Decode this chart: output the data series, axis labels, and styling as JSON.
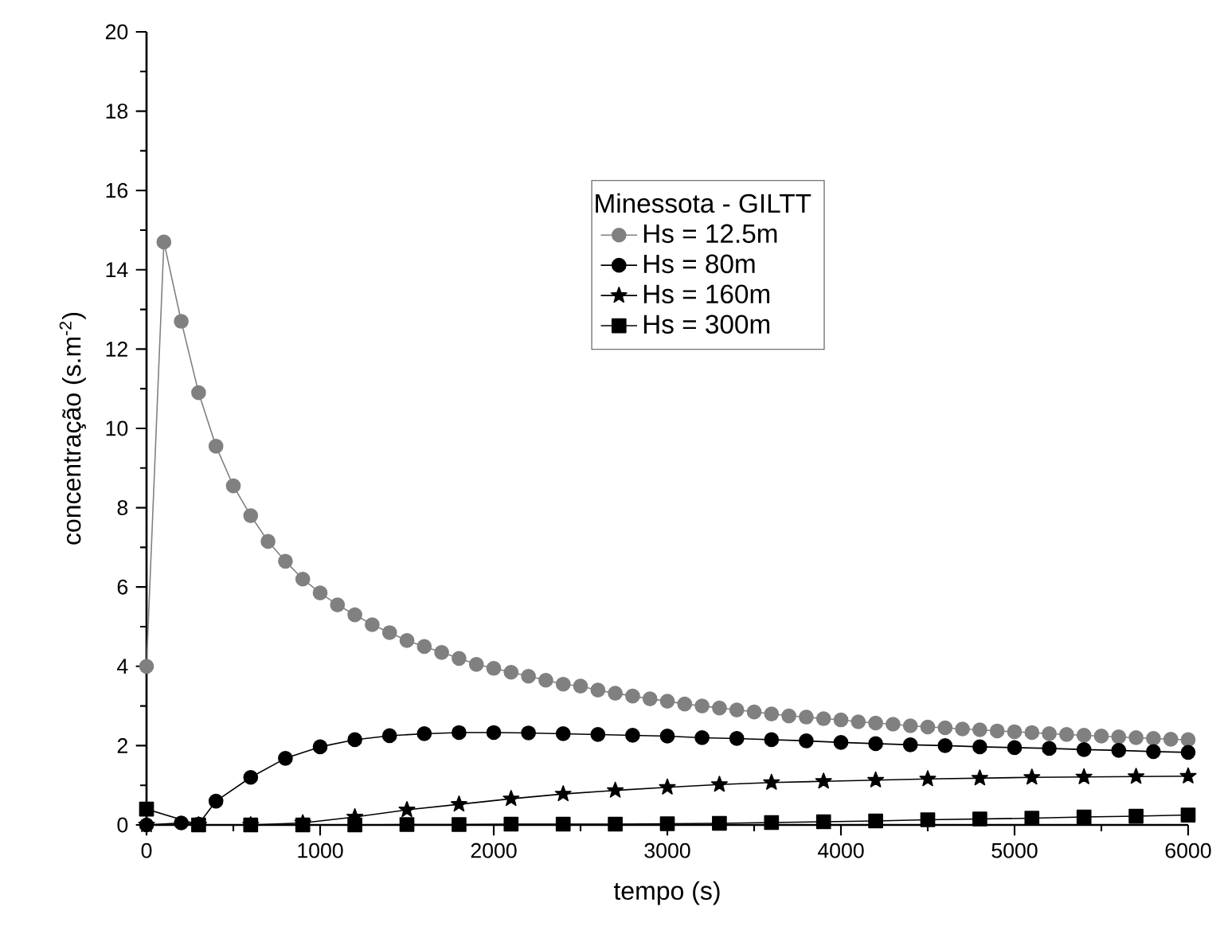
{
  "chart_data": {
    "type": "line",
    "xlabel": "tempo  (s)",
    "ylabel": "concentração  (s.m$^{-2}$)",
    "legend_title": "Minessota - GILTT",
    "xlim": [
      0,
      6000
    ],
    "ylim": [
      0,
      20
    ],
    "xticks": [
      0,
      1000,
      2000,
      3000,
      4000,
      5000,
      6000
    ],
    "yticks": [
      0,
      2,
      4,
      6,
      8,
      10,
      12,
      14,
      16,
      18,
      20
    ],
    "legend": "top right",
    "grid": false,
    "series": [
      {
        "name": "Hs = 12.5m",
        "color": "#808080",
        "marker": "circle",
        "x": [
          0,
          100,
          200,
          300,
          400,
          500,
          600,
          700,
          800,
          900,
          1000,
          1100,
          1200,
          1300,
          1400,
          1500,
          1600,
          1700,
          1800,
          1900,
          2000,
          2100,
          2200,
          2300,
          2400,
          2500,
          2600,
          2700,
          2800,
          2900,
          3000,
          3100,
          3200,
          3300,
          3400,
          3500,
          3600,
          3700,
          3800,
          3900,
          4000,
          4100,
          4200,
          4300,
          4400,
          4500,
          4600,
          4700,
          4800,
          4900,
          5000,
          5100,
          5200,
          5300,
          5400,
          5500,
          5600,
          5700,
          5800,
          5900,
          6000
        ],
        "values": [
          4.0,
          14.7,
          12.7,
          10.9,
          9.55,
          8.55,
          7.8,
          7.15,
          6.65,
          6.2,
          5.85,
          5.55,
          5.3,
          5.05,
          4.85,
          4.65,
          4.5,
          4.35,
          4.2,
          4.05,
          3.95,
          3.85,
          3.75,
          3.65,
          3.55,
          3.5,
          3.4,
          3.32,
          3.25,
          3.18,
          3.12,
          3.05,
          3.0,
          2.95,
          2.9,
          2.85,
          2.8,
          2.75,
          2.72,
          2.68,
          2.65,
          2.6,
          2.57,
          2.54,
          2.5,
          2.47,
          2.45,
          2.42,
          2.4,
          2.37,
          2.35,
          2.33,
          2.3,
          2.28,
          2.26,
          2.24,
          2.22,
          2.2,
          2.18,
          2.16,
          2.15
        ]
      },
      {
        "name": "Hs = 80m",
        "color": "#000000",
        "marker": "circle",
        "x": [
          0,
          200,
          300,
          400,
          600,
          800,
          1000,
          1200,
          1400,
          1600,
          1800,
          2000,
          2200,
          2400,
          2600,
          2800,
          3000,
          3200,
          3400,
          3600,
          3800,
          4000,
          4200,
          4400,
          4600,
          4800,
          5000,
          5200,
          5400,
          5600,
          5800,
          6000
        ],
        "values": [
          0.0,
          0.05,
          0.02,
          0.6,
          1.2,
          1.68,
          1.97,
          2.15,
          2.25,
          2.3,
          2.33,
          2.33,
          2.32,
          2.3,
          2.28,
          2.26,
          2.24,
          2.2,
          2.18,
          2.15,
          2.12,
          2.08,
          2.05,
          2.02,
          2.0,
          1.97,
          1.95,
          1.93,
          1.9,
          1.88,
          1.85,
          1.83
        ]
      },
      {
        "name": "Hs = 160m",
        "color": "#000000",
        "marker": "star",
        "x": [
          0,
          300,
          600,
          900,
          1200,
          1500,
          1800,
          2100,
          2400,
          2700,
          3000,
          3300,
          3600,
          3900,
          4200,
          4500,
          4800,
          5100,
          5400,
          5700,
          6000
        ],
        "values": [
          0.0,
          0.0,
          0.0,
          0.05,
          0.2,
          0.38,
          0.52,
          0.66,
          0.78,
          0.87,
          0.95,
          1.02,
          1.07,
          1.1,
          1.13,
          1.16,
          1.18,
          1.2,
          1.21,
          1.22,
          1.23
        ]
      },
      {
        "name": "Hs = 300m",
        "color": "#000000",
        "marker": "square",
        "x": [
          0,
          300,
          600,
          900,
          1200,
          1500,
          1800,
          2100,
          2400,
          2700,
          3000,
          3300,
          3600,
          3900,
          4200,
          4500,
          4800,
          5100,
          5400,
          5700,
          6000
        ],
        "values": [
          0.4,
          0.0,
          0.0,
          0.0,
          0.0,
          0.01,
          0.01,
          0.02,
          0.02,
          0.02,
          0.03,
          0.04,
          0.06,
          0.08,
          0.1,
          0.13,
          0.15,
          0.17,
          0.2,
          0.22,
          0.25
        ]
      }
    ]
  }
}
